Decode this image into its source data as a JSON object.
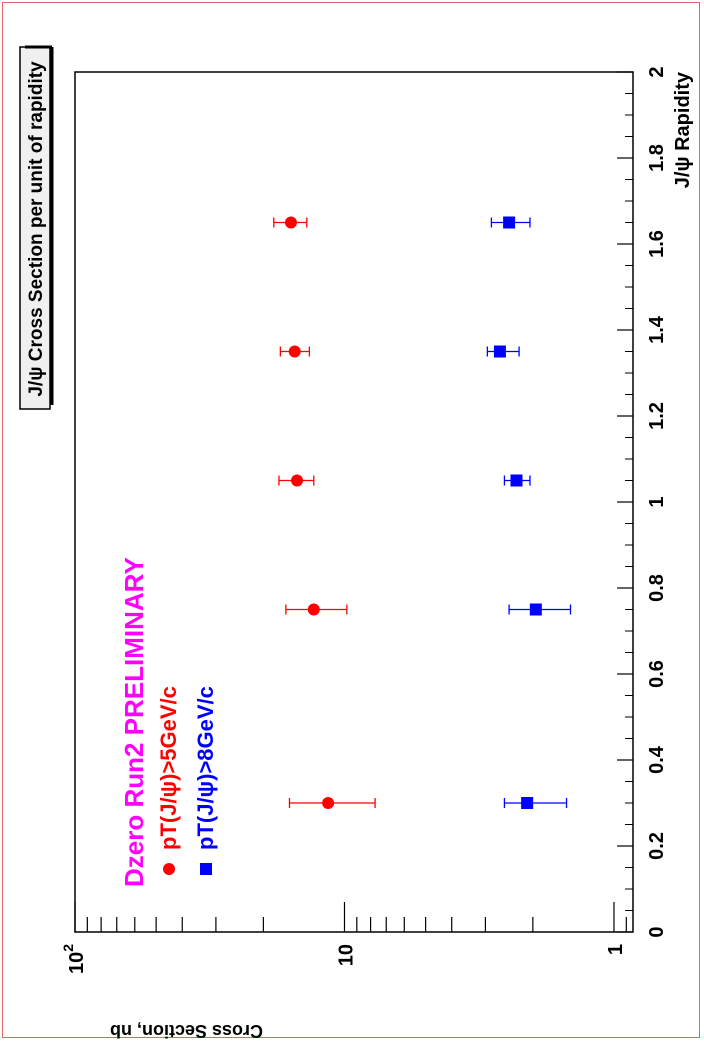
{
  "chart_data": {
    "type": "scatter",
    "title": "J/ψ Cross Section per unit of rapidity",
    "xlabel": "J/ψ Rapidity",
    "ylabel": "Cross Section, nb",
    "xlim": [
      0,
      2
    ],
    "ylim": [
      0.85,
      100
    ],
    "ylog": true,
    "grid": false,
    "x_ticks": [
      "0",
      "0.2",
      "0.4",
      "0.6",
      "0.8",
      "1",
      "1.2",
      "1.4",
      "1.6",
      "1.8",
      "2"
    ],
    "y_ticks": [
      {
        "base": "1",
        "exp": ""
      },
      {
        "base": "10",
        "exp": ""
      },
      {
        "base": "10",
        "exp": "2"
      }
    ],
    "annotation": "Dzero Run2 PRELIMINARY",
    "legend_position": "top-left",
    "series": [
      {
        "name": "pT(J/ψ)>5GeV/c",
        "color": "#ff0000",
        "marker": "circle",
        "x": [
          0.3,
          0.75,
          1.05,
          1.35,
          1.65
        ],
        "y": [
          11.5,
          13.0,
          15.0,
          15.3,
          15.8
        ],
        "y_low": [
          7.7,
          9.8,
          13.0,
          13.5,
          13.8
        ],
        "y_high": [
          16.0,
          16.5,
          17.5,
          17.3,
          18.3
        ]
      },
      {
        "name": "pT(J/ψ)>8GeV/c",
        "color": "#0000ff",
        "marker": "square",
        "x": [
          0.3,
          0.75,
          1.05,
          1.35,
          1.65
        ],
        "y": [
          2.1,
          1.95,
          2.3,
          2.65,
          2.45
        ],
        "y_low": [
          1.5,
          1.45,
          2.05,
          2.25,
          2.05
        ],
        "y_high": [
          2.55,
          2.45,
          2.55,
          2.95,
          2.85
        ]
      }
    ]
  }
}
